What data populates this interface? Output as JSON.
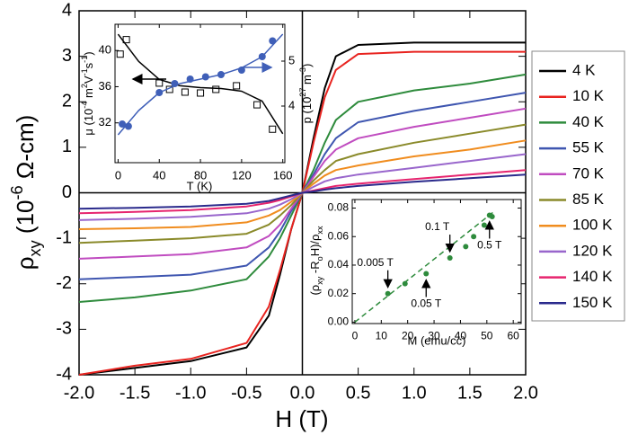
{
  "chart_data": [
    {
      "type": "line",
      "x_label": "H (T)",
      "y_label": [
        "ρ",
        "xy",
        " (10",
        "-6",
        " Ω-cm)"
      ],
      "x": [
        -2,
        -1.5,
        -1,
        -0.5,
        -0.3,
        -0.2,
        -0.1,
        0,
        0.1,
        0.2,
        0.3,
        0.5,
        1,
        1.5,
        2
      ],
      "series": [
        {
          "name": "4 K",
          "color": "#000000",
          "values": [
            -4.0,
            -3.85,
            -3.7,
            -3.4,
            -2.7,
            -1.8,
            -0.8,
            0,
            1.2,
            2.3,
            3.0,
            3.25,
            3.3,
            3.3,
            3.3
          ]
        },
        {
          "name": "10 K",
          "color": "#e8231f",
          "values": [
            -4.0,
            -3.8,
            -3.65,
            -3.3,
            -2.5,
            -1.7,
            -0.8,
            0,
            1.1,
            2.1,
            2.7,
            3.05,
            3.1,
            3.1,
            3.1
          ]
        },
        {
          "name": "40 K",
          "color": "#2e8b3c",
          "values": [
            -2.4,
            -2.3,
            -2.15,
            -1.9,
            -1.4,
            -1.0,
            -0.5,
            0,
            0.5,
            1.1,
            1.6,
            2.0,
            2.25,
            2.4,
            2.6
          ]
        },
        {
          "name": "55 K",
          "color": "#3f56b0",
          "values": [
            -1.9,
            -1.85,
            -1.8,
            -1.6,
            -1.2,
            -0.85,
            -0.4,
            0,
            0.4,
            0.85,
            1.2,
            1.55,
            1.8,
            2.0,
            2.2
          ]
        },
        {
          "name": "70 K",
          "color": "#c04cc0",
          "values": [
            -1.45,
            -1.4,
            -1.35,
            -1.2,
            -0.95,
            -0.7,
            -0.35,
            0,
            0.35,
            0.7,
            0.95,
            1.2,
            1.45,
            1.65,
            1.85
          ]
        },
        {
          "name": "85 K",
          "color": "#8a8a2a",
          "values": [
            -1.1,
            -1.05,
            -1.0,
            -0.9,
            -0.7,
            -0.5,
            -0.27,
            0,
            0.27,
            0.5,
            0.7,
            0.85,
            1.1,
            1.3,
            1.5
          ]
        },
        {
          "name": "100 K",
          "color": "#f08c1e",
          "values": [
            -0.8,
            -0.78,
            -0.75,
            -0.65,
            -0.5,
            -0.38,
            -0.2,
            0,
            0.2,
            0.38,
            0.5,
            0.6,
            0.8,
            0.95,
            1.15
          ]
        },
        {
          "name": "120 K",
          "color": "#9966cc",
          "values": [
            -0.6,
            -0.57,
            -0.53,
            -0.45,
            -0.35,
            -0.26,
            -0.14,
            0,
            0.13,
            0.25,
            0.32,
            0.4,
            0.55,
            0.7,
            0.85
          ]
        },
        {
          "name": "140 K",
          "color": "#e6246e",
          "values": [
            -0.45,
            -0.42,
            -0.38,
            -0.3,
            -0.22,
            -0.16,
            -0.08,
            0,
            0.05,
            0.1,
            0.15,
            0.2,
            0.3,
            0.4,
            0.5
          ]
        },
        {
          "name": "150 K",
          "color": "#2a2a8c",
          "values": [
            -0.35,
            -0.33,
            -0.3,
            -0.24,
            -0.18,
            -0.12,
            -0.06,
            0,
            0.03,
            0.07,
            0.1,
            0.15,
            0.24,
            0.32,
            0.4
          ]
        }
      ],
      "xlim": [
        -2,
        2
      ],
      "ylim": [
        -4,
        4
      ],
      "xticks": [
        {
          "value": -2,
          "label": "-2.0"
        },
        {
          "value": -1.5,
          "label": "-1.5"
        },
        {
          "value": -1,
          "label": "-1.0"
        },
        {
          "value": -0.5,
          "label": "-0.5"
        },
        {
          "value": 0,
          "label": "0.0"
        },
        {
          "value": 0.5,
          "label": "0.5"
        },
        {
          "value": 1,
          "label": "1.0"
        },
        {
          "value": 1.5,
          "label": "1.5"
        },
        {
          "value": 2,
          "label": "2.0"
        }
      ],
      "yticks": [
        -4,
        -3,
        -2,
        -1,
        0,
        1,
        2,
        3,
        4
      ],
      "legend": "right"
    },
    {
      "type": "scatter",
      "x_label": "T (K)",
      "y_label": [
        "μ (10",
        "-4",
        " m",
        "2",
        "V",
        "-1",
        "s",
        "-1",
        ")"
      ],
      "y2_label": [
        "p (10",
        "27",
        " m",
        "-3",
        ")"
      ],
      "series": [
        {
          "color": "#000000",
          "style": "open-square",
          "x": [
            2,
            8,
            40,
            50,
            65,
            80,
            95,
            115,
            135,
            150
          ],
          "values": [
            39.6,
            41.2,
            36.4,
            35.7,
            35.4,
            35.3,
            35.7,
            36.1,
            34.0,
            31.3
          ]
        },
        {
          "color": "#000000",
          "style": "line",
          "x": [
            0,
            20,
            40,
            60,
            80,
            100,
            120,
            140,
            160
          ],
          "values": [
            41.8,
            38.8,
            36.8,
            36.1,
            35.9,
            35.8,
            35.5,
            34.4,
            30.8
          ]
        },
        {
          "color": "#3f5fb8",
          "style": "filled-circle",
          "axis": "y2",
          "x": [
            4,
            10,
            40,
            55,
            70,
            85,
            100,
            120,
            140,
            150
          ],
          "values": [
            3.6,
            3.55,
            4.3,
            4.5,
            4.6,
            4.65,
            4.7,
            4.8,
            5.1,
            5.45
          ]
        },
        {
          "color": "#3f5fb8",
          "style": "line",
          "axis": "y2",
          "x": [
            0,
            20,
            40,
            60,
            80,
            100,
            120,
            140,
            160
          ],
          "values": [
            3.36,
            3.9,
            4.3,
            4.5,
            4.6,
            4.7,
            4.85,
            5.1,
            5.6
          ]
        }
      ],
      "xlim": [
        -3,
        162
      ],
      "ylim": [
        27.6,
        42.9
      ],
      "y2lim": [
        2.74,
        5.82
      ],
      "xticks": [
        0,
        40,
        80,
        120,
        160
      ],
      "yticks": [
        32,
        36,
        40
      ],
      "y2ticks": [
        4,
        5
      ]
    },
    {
      "type": "scatter",
      "x_label": "M (emu/cc)",
      "y_label": [
        "(ρ",
        "xy",
        " -R",
        "o",
        "H)/ρ",
        "xx"
      ],
      "series": [
        {
          "color": "#2e8b3c",
          "style": "filled-circle",
          "x": [
            12.5,
            19,
            27,
            36,
            42,
            45,
            49,
            51,
            52
          ],
          "values": [
            0.02,
            0.027,
            0.034,
            0.045,
            0.053,
            0.06,
            0.068,
            0.075,
            0.074
          ]
        },
        {
          "color": "#2e8b3c",
          "style": "dashed-line",
          "x": [
            0,
            53
          ],
          "values": [
            0,
            0.078
          ]
        }
      ],
      "annotations": [
        "0.005 T",
        "0.05 T",
        "0.1 T",
        "0.5 T"
      ],
      "xlim": [
        -1,
        63
      ],
      "ylim": [
        -0.001,
        0.086
      ],
      "xticks": [
        0,
        10,
        20,
        30,
        40,
        50,
        60
      ],
      "yticks": [
        {
          "value": 0,
          "label": "0.00"
        },
        {
          "value": 0.02,
          "label": "0.02"
        },
        {
          "value": 0.04,
          "label": "0.04"
        },
        {
          "value": 0.06,
          "label": "0.06"
        },
        {
          "value": 0.08,
          "label": "0.08"
        }
      ]
    }
  ]
}
